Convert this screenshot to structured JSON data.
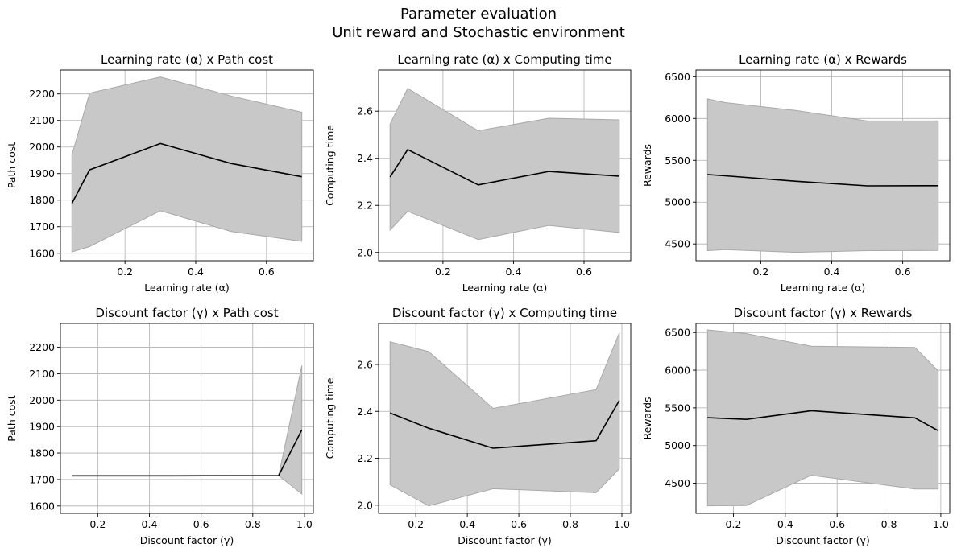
{
  "figure": {
    "title_line1": "Parameter evaluation",
    "title_line2": "Unit reward and Stochastic environment"
  },
  "colors": {
    "line": "#000000",
    "band_fill": "#c8c8c8",
    "band_edge": "#a9a9a9",
    "grid": "#b0b0b0"
  },
  "chart_data": [
    {
      "type": "line",
      "title": "Learning rate (α) x Path cost",
      "xlabel": "Learning rate (α)",
      "ylabel": "Path cost",
      "grid": true,
      "xlim": [
        0.0175,
        0.7325
      ],
      "ylim": [
        1572,
        2290
      ],
      "xticks": [
        0.2,
        0.4,
        0.6
      ],
      "xtick_labels": [
        "0.2",
        "0.4",
        "0.6"
      ],
      "yticks": [
        1600,
        1700,
        1800,
        1900,
        2000,
        2100,
        2200
      ],
      "ytick_labels": [
        "1600",
        "1700",
        "1800",
        "1900",
        "2000",
        "2100",
        "2200"
      ],
      "x": [
        0.05,
        0.1,
        0.3,
        0.5,
        0.7
      ],
      "mean": [
        1788,
        1914,
        2013,
        1938,
        1888
      ],
      "lower": [
        1605,
        1625,
        1760,
        1682,
        1645
      ],
      "upper": [
        1970,
        2203,
        2264,
        2192,
        2131
      ]
    },
    {
      "type": "line",
      "title": "Learning rate (α) x Computing time",
      "xlabel": "Learning rate (α)",
      "ylabel": "Computing time",
      "grid": true,
      "xlim": [
        0.0175,
        0.7325
      ],
      "ylim": [
        1.965,
        2.775
      ],
      "xticks": [
        0.2,
        0.4,
        0.6
      ],
      "xtick_labels": [
        "0.2",
        "0.4",
        "0.6"
      ],
      "yticks": [
        2.0,
        2.2,
        2.4,
        2.6
      ],
      "ytick_labels": [
        "2.0",
        "2.2",
        "2.4",
        "2.6"
      ],
      "x": [
        0.05,
        0.1,
        0.3,
        0.5,
        0.7
      ],
      "mean": [
        2.32,
        2.437,
        2.287,
        2.344,
        2.324
      ],
      "lower": [
        2.095,
        2.175,
        2.055,
        2.115,
        2.085
      ],
      "upper": [
        2.545,
        2.697,
        2.517,
        2.57,
        2.563
      ]
    },
    {
      "type": "line",
      "title": "Learning rate (α) x Rewards",
      "xlabel": "Learning rate (α)",
      "ylabel": "Rewards",
      "grid": true,
      "xlim": [
        0.0175,
        0.7325
      ],
      "ylim": [
        4300,
        6580
      ],
      "xticks": [
        0.2,
        0.4,
        0.6
      ],
      "xtick_labels": [
        "0.2",
        "0.4",
        "0.6"
      ],
      "yticks": [
        4500,
        5000,
        5500,
        6000,
        6500
      ],
      "ytick_labels": [
        "4500",
        "5000",
        "5500",
        "6000",
        "6500"
      ],
      "x": [
        0.05,
        0.1,
        0.3,
        0.5,
        0.7
      ],
      "mean": [
        5330,
        5315,
        5250,
        5195,
        5197
      ],
      "lower": [
        4420,
        4432,
        4400,
        4420,
        4422
      ],
      "upper": [
        6235,
        6190,
        6095,
        5970,
        5970
      ]
    },
    {
      "type": "line",
      "title": "Discount factor (γ) x Path cost",
      "xlabel": "Discount factor (γ)",
      "ylabel": "Path cost",
      "grid": true,
      "xlim": [
        0.0555,
        1.0345
      ],
      "ylim": [
        1572,
        2290
      ],
      "xticks": [
        0.2,
        0.4,
        0.6,
        0.8,
        1.0
      ],
      "xtick_labels": [
        "0.2",
        "0.4",
        "0.6",
        "0.8",
        "1.0"
      ],
      "yticks": [
        1600,
        1700,
        1800,
        1900,
        2000,
        2100,
        2200
      ],
      "ytick_labels": [
        "1600",
        "1700",
        "1800",
        "1900",
        "2000",
        "2100",
        "2200"
      ],
      "x": [
        0.1,
        0.25,
        0.5,
        0.9,
        0.99
      ],
      "mean": [
        1714,
        1714,
        1714,
        1715,
        1888
      ],
      "lower": [
        1714,
        1714,
        1714,
        1715,
        1645
      ],
      "upper": [
        1714,
        1714,
        1714,
        1715,
        2131
      ]
    },
    {
      "type": "line",
      "title": "Discount factor (γ) x Computing time",
      "xlabel": "Discount factor (γ)",
      "ylabel": "Computing time",
      "grid": true,
      "xlim": [
        0.0555,
        1.0345
      ],
      "ylim": [
        1.965,
        2.775
      ],
      "xticks": [
        0.2,
        0.4,
        0.6,
        0.8,
        1.0
      ],
      "xtick_labels": [
        "0.2",
        "0.4",
        "0.6",
        "0.8",
        "1.0"
      ],
      "yticks": [
        2.0,
        2.2,
        2.4,
        2.6
      ],
      "ytick_labels": [
        "2.0",
        "2.2",
        "2.4",
        "2.6"
      ],
      "x": [
        0.1,
        0.25,
        0.5,
        0.9,
        0.99
      ],
      "mean": [
        2.393,
        2.328,
        2.243,
        2.275,
        2.447
      ],
      "lower": [
        2.087,
        1.997,
        2.07,
        2.053,
        2.155
      ],
      "upper": [
        2.697,
        2.655,
        2.413,
        2.493,
        2.735
      ]
    },
    {
      "type": "line",
      "title": "Discount factor (γ) x Rewards",
      "xlabel": "Discount factor (γ)",
      "ylabel": "Rewards",
      "grid": true,
      "xlim": [
        0.0555,
        1.0345
      ],
      "ylim": [
        4100,
        6620
      ],
      "xticks": [
        0.2,
        0.4,
        0.6,
        0.8,
        1.0
      ],
      "xtick_labels": [
        "0.2",
        "0.4",
        "0.6",
        "0.8",
        "1.0"
      ],
      "yticks": [
        4500,
        5000,
        5500,
        6000,
        6500
      ],
      "ytick_labels": [
        "4500",
        "5000",
        "5500",
        "6000",
        "6500"
      ],
      "x": [
        0.1,
        0.25,
        0.5,
        0.9,
        0.99
      ],
      "mean": [
        5370,
        5347,
        5463,
        5367,
        5197
      ],
      "lower": [
        4200,
        4205,
        4605,
        4422,
        4422
      ],
      "upper": [
        6535,
        6485,
        6318,
        6303,
        5990
      ]
    }
  ]
}
